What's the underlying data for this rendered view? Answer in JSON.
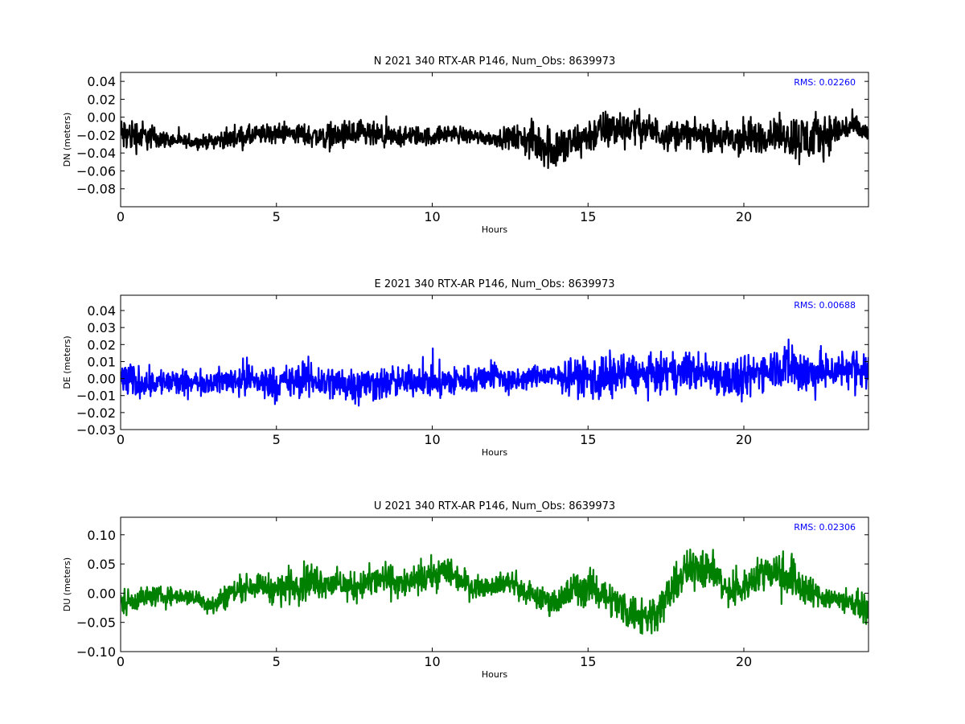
{
  "chart_data": [
    {
      "type": "line",
      "title": "N 2021 340 RTX-AR  P146, Num_Obs: 8639973",
      "xlabel": "Hours",
      "ylabel": "DN (meters)",
      "xlim": [
        0,
        24
      ],
      "ylim": [
        -0.1,
        0.05
      ],
      "xticks": [
        0,
        5,
        10,
        15,
        20
      ],
      "xtick_labels": [
        "0",
        "5",
        "10",
        "15",
        "20"
      ],
      "yticks": [
        -0.08,
        -0.06,
        -0.04,
        -0.02,
        0.0,
        0.02,
        0.04
      ],
      "ytick_labels": [
        "−0.08",
        "−0.06",
        "−0.04",
        "−0.02",
        "0.00",
        "0.02",
        "0.04"
      ],
      "annotation": "RMS:  0.02260",
      "color": "#000000",
      "series": [
        {
          "x": [
            0,
            0.5,
            1,
            1.5,
            2,
            2.5,
            3,
            3.5,
            4,
            4.5,
            5,
            5.5,
            6,
            6.5,
            7,
            7.5,
            8,
            8.5,
            9,
            9.5,
            10,
            10.5,
            11,
            11.5,
            12,
            12.5,
            13,
            13.5,
            14,
            14.5,
            15,
            15.5,
            16,
            16.5,
            17,
            17.5,
            18,
            18.5,
            19,
            19.5,
            20,
            20.5,
            21,
            21.5,
            22,
            22.5,
            23,
            23.5,
            24
          ],
          "mean": [
            -0.02,
            -0.02,
            -0.022,
            -0.025,
            -0.027,
            -0.028,
            -0.026,
            -0.024,
            -0.022,
            -0.02,
            -0.018,
            -0.018,
            -0.02,
            -0.022,
            -0.021,
            -0.02,
            -0.02,
            -0.023,
            -0.022,
            -0.021,
            -0.022,
            -0.018,
            -0.02,
            -0.022,
            -0.024,
            -0.023,
            -0.025,
            -0.03,
            -0.035,
            -0.03,
            -0.02,
            -0.015,
            -0.012,
            -0.01,
            -0.015,
            -0.02,
            -0.018,
            -0.02,
            -0.022,
            -0.025,
            -0.025,
            -0.022,
            -0.018,
            -0.022,
            -0.025,
            -0.02,
            -0.015,
            -0.01,
            -0.02
          ],
          "amp": [
            0.03,
            0.028,
            0.02,
            0.012,
            0.01,
            0.01,
            0.012,
            0.016,
            0.018,
            0.016,
            0.016,
            0.016,
            0.018,
            0.02,
            0.022,
            0.025,
            0.022,
            0.018,
            0.016,
            0.016,
            0.015,
            0.014,
            0.014,
            0.012,
            0.012,
            0.018,
            0.028,
            0.035,
            0.04,
            0.03,
            0.03,
            0.032,
            0.032,
            0.026,
            0.026,
            0.024,
            0.022,
            0.022,
            0.025,
            0.03,
            0.035,
            0.028,
            0.026,
            0.036,
            0.045,
            0.034,
            0.028,
            0.02,
            0.018
          ]
        }
      ]
    },
    {
      "type": "line",
      "title": "E 2021 340 RTX-AR  P146, Num_Obs: 8639973",
      "xlabel": "Hours",
      "ylabel": "DE (meters)",
      "xlim": [
        0,
        24
      ],
      "ylim": [
        -0.03,
        0.049
      ],
      "xticks": [
        0,
        5,
        10,
        15,
        20
      ],
      "xtick_labels": [
        "0",
        "5",
        "10",
        "15",
        "20"
      ],
      "yticks": [
        -0.03,
        -0.02,
        -0.01,
        0.0,
        0.01,
        0.02,
        0.03,
        0.04
      ],
      "ytick_labels": [
        "−0.03",
        "−0.02",
        "−0.01",
        "0.00",
        "0.01",
        "0.02",
        "0.03",
        "0.04"
      ],
      "annotation": "RMS:  0.00688",
      "color": "#0000ff",
      "series": [
        {
          "x": [
            0,
            0.5,
            1,
            1.5,
            2,
            2.5,
            3,
            3.5,
            4,
            4.5,
            5,
            5.5,
            6,
            6.5,
            7,
            7.5,
            8,
            8.5,
            9,
            9.5,
            10,
            10.5,
            11,
            11.5,
            12,
            12.5,
            13,
            13.5,
            14,
            14.5,
            15,
            15.5,
            16,
            16.5,
            17,
            17.5,
            18,
            18.5,
            19,
            19.5,
            20,
            20.5,
            21,
            21.5,
            22,
            22.5,
            23,
            23.5,
            24
          ],
          "mean": [
            0.0,
            -0.002,
            -0.002,
            -0.002,
            -0.003,
            -0.002,
            -0.002,
            -0.001,
            0.0,
            -0.002,
            -0.003,
            -0.002,
            0.0,
            -0.002,
            -0.003,
            -0.003,
            -0.003,
            -0.003,
            -0.002,
            -0.001,
            -0.002,
            -0.002,
            -0.001,
            0.0,
            0.003,
            -0.003,
            0.0,
            0.002,
            0.0,
            0.002,
            0.0,
            0.0,
            0.003,
            0.003,
            0.002,
            0.003,
            0.004,
            0.004,
            0.003,
            0.0,
            -0.002,
            0.005,
            0.007,
            0.008,
            0.003,
            0.004,
            0.005,
            0.006,
            0.004
          ],
          "amp": [
            0.016,
            0.014,
            0.012,
            0.012,
            0.011,
            0.01,
            0.01,
            0.012,
            0.016,
            0.015,
            0.014,
            0.015,
            0.016,
            0.015,
            0.016,
            0.016,
            0.015,
            0.014,
            0.013,
            0.012,
            0.014,
            0.015,
            0.013,
            0.012,
            0.012,
            0.012,
            0.01,
            0.009,
            0.012,
            0.014,
            0.018,
            0.022,
            0.018,
            0.016,
            0.016,
            0.016,
            0.016,
            0.017,
            0.016,
            0.018,
            0.02,
            0.016,
            0.018,
            0.022,
            0.022,
            0.017,
            0.016,
            0.017,
            0.02
          ]
        }
      ]
    },
    {
      "type": "line",
      "title": "U 2021 340 RTX-AR  P146, Num_Obs: 8639973",
      "xlabel": "Hours",
      "ylabel": "DU (meters)",
      "xlim": [
        0,
        24
      ],
      "ylim": [
        -0.1,
        0.13
      ],
      "xticks": [
        0,
        5,
        10,
        15,
        20
      ],
      "xtick_labels": [
        "0",
        "5",
        "10",
        "15",
        "20"
      ],
      "yticks": [
        -0.1,
        -0.05,
        0.0,
        0.05,
        0.1
      ],
      "ytick_labels": [
        "−0.10",
        "−0.05",
        "0.00",
        "0.05",
        "0.10"
      ],
      "annotation": "RMS:  0.02306",
      "color": "#008000",
      "series": [
        {
          "x": [
            0,
            0.5,
            1,
            1.5,
            2,
            2.5,
            3,
            3.5,
            4,
            4.5,
            5,
            5.5,
            6,
            6.5,
            7,
            7.5,
            8,
            8.5,
            9,
            9.5,
            10,
            10.5,
            11,
            11.5,
            12,
            12.5,
            13,
            13.5,
            14,
            14.5,
            15,
            15.5,
            16,
            16.5,
            17,
            17.5,
            18,
            18.5,
            19,
            19.5,
            20,
            20.5,
            21,
            21.5,
            22,
            22.5,
            23,
            23.5,
            24
          ],
          "mean": [
            -0.015,
            -0.01,
            -0.005,
            -0.005,
            -0.005,
            -0.01,
            -0.02,
            0.0,
            0.01,
            0.015,
            0.005,
            0.015,
            0.02,
            0.02,
            0.015,
            0.01,
            0.02,
            0.025,
            0.015,
            0.02,
            0.03,
            0.04,
            0.02,
            0.01,
            0.015,
            0.02,
            0.0,
            -0.01,
            -0.015,
            0.005,
            0.01,
            0.0,
            -0.02,
            -0.035,
            -0.04,
            -0.01,
            0.03,
            0.05,
            0.04,
            0.0,
            0.01,
            0.035,
            0.04,
            0.03,
            0.005,
            -0.005,
            -0.01,
            -0.015,
            -0.03
          ],
          "amp": [
            0.035,
            0.03,
            0.025,
            0.022,
            0.02,
            0.022,
            0.028,
            0.032,
            0.03,
            0.028,
            0.04,
            0.045,
            0.048,
            0.04,
            0.035,
            0.035,
            0.04,
            0.04,
            0.038,
            0.035,
            0.04,
            0.04,
            0.035,
            0.025,
            0.025,
            0.03,
            0.03,
            0.03,
            0.035,
            0.045,
            0.045,
            0.04,
            0.045,
            0.05,
            0.055,
            0.045,
            0.045,
            0.06,
            0.045,
            0.04,
            0.04,
            0.04,
            0.05,
            0.06,
            0.045,
            0.03,
            0.03,
            0.03,
            0.035
          ]
        }
      ]
    }
  ]
}
